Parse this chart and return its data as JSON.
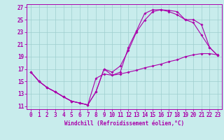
{
  "xlabel": "Windchill (Refroidissement éolien,°C)",
  "bg_color": "#c8ecec",
  "grid_color": "#9ecece",
  "line_color": "#aa00aa",
  "xlim": [
    -0.5,
    23.5
  ],
  "ylim": [
    10.5,
    27.5
  ],
  "xticks": [
    0,
    1,
    2,
    3,
    4,
    5,
    6,
    7,
    8,
    9,
    10,
    11,
    12,
    13,
    14,
    15,
    16,
    17,
    18,
    19,
    20,
    21,
    22,
    23
  ],
  "yticks": [
    11,
    13,
    15,
    17,
    19,
    21,
    23,
    25,
    27
  ],
  "line1_x": [
    0,
    1,
    2,
    3,
    4,
    5,
    6,
    7,
    8,
    9,
    10,
    11,
    12,
    13,
    14,
    15,
    16,
    17,
    18,
    19,
    20,
    21,
    22,
    23
  ],
  "line1_y": [
    16.5,
    15.0,
    14.0,
    13.3,
    12.5,
    11.8,
    11.5,
    11.2,
    13.3,
    17.0,
    16.0,
    16.2,
    16.5,
    16.8,
    17.2,
    17.5,
    17.8,
    18.2,
    18.5,
    19.0,
    19.3,
    19.5,
    19.5,
    19.3
  ],
  "line2_x": [
    0,
    1,
    2,
    3,
    4,
    5,
    6,
    7,
    8,
    9,
    10,
    11,
    12,
    13,
    14,
    15,
    16,
    17,
    18,
    19,
    20,
    21,
    22,
    23
  ],
  "line2_y": [
    16.5,
    15.0,
    14.0,
    13.3,
    12.5,
    11.8,
    11.5,
    11.2,
    13.3,
    17.0,
    16.5,
    17.5,
    20.0,
    23.0,
    24.9,
    26.3,
    26.6,
    26.5,
    26.3,
    25.0,
    24.5,
    22.5,
    20.5,
    19.2
  ],
  "line3_x": [
    0,
    1,
    2,
    3,
    4,
    5,
    6,
    7,
    8,
    9,
    10,
    11,
    12,
    13,
    14,
    15,
    16,
    17,
    18,
    19,
    20,
    21,
    22,
    23
  ],
  "line3_y": [
    16.5,
    15.0,
    14.0,
    13.3,
    12.5,
    11.8,
    11.5,
    11.2,
    15.5,
    16.2,
    16.0,
    16.5,
    20.5,
    23.2,
    26.0,
    26.6,
    26.6,
    26.3,
    25.8,
    25.0,
    25.0,
    24.2,
    20.5,
    19.2
  ],
  "tick_fontsize": 5.5,
  "xlabel_fontsize": 5.5,
  "marker_size": 2.0,
  "line_width": 0.8
}
